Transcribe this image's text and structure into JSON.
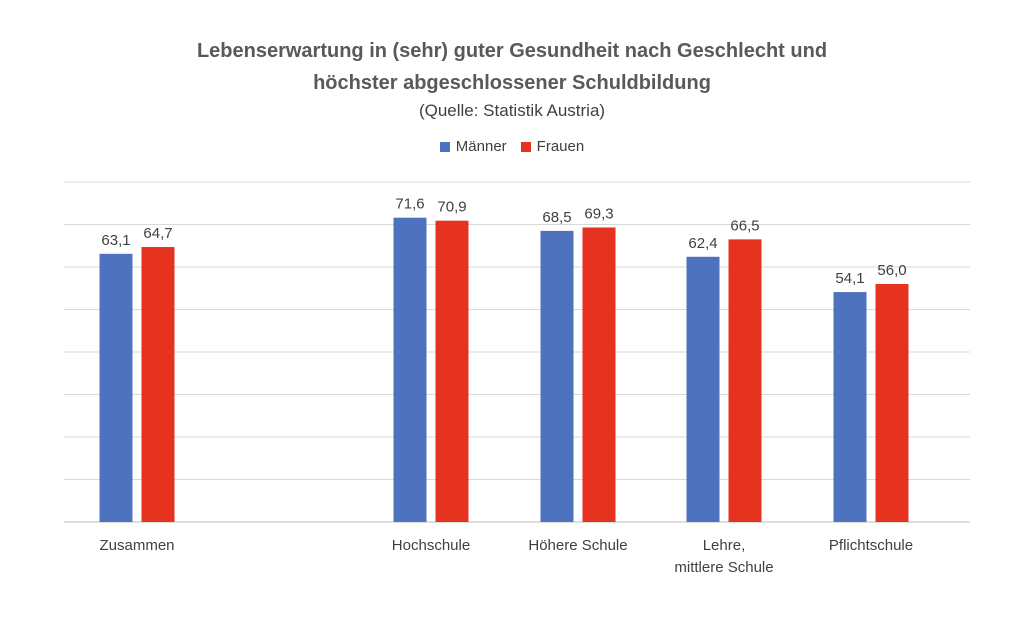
{
  "chart_data": {
    "type": "bar",
    "title_line1": "Lebenserwartung in (sehr) guter Gesundheit nach Geschlecht und",
    "title_line2": "höchster abgeschlossener Schuldbildung",
    "subtitle": "(Quelle: Statistik Austria)",
    "categories": [
      "Zusammen",
      "Hochschule",
      "Höhere Schule",
      "Lehre, mittlere Schule",
      "Pflichtschule"
    ],
    "series": [
      {
        "name": "Männer",
        "color": "#4f72be",
        "values": [
          63.1,
          71.6,
          68.5,
          62.4,
          54.1
        ],
        "labels": [
          "63,1",
          "71,6",
          "68,5",
          "62,4",
          "54,1"
        ]
      },
      {
        "name": "Frauen",
        "color": "#e5331f",
        "values": [
          64.7,
          70.9,
          69.3,
          66.5,
          56.0
        ],
        "labels": [
          "64,7",
          "70,9",
          "69,3",
          "66,5",
          "56,0"
        ]
      }
    ],
    "ylim": [
      0,
      80
    ],
    "grid": true,
    "legend_position": "top"
  }
}
